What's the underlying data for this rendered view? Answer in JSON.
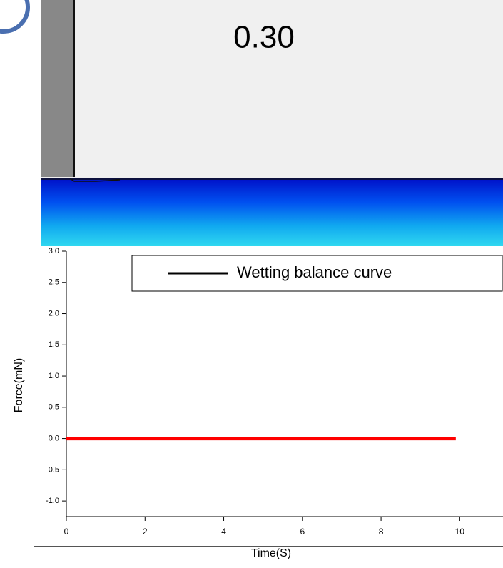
{
  "chart_data": {
    "type": "line",
    "annotation": "0.30",
    "xlabel": "Time(S)",
    "ylabel": "Force(mN)",
    "x": [
      0,
      9.9
    ],
    "series": [
      {
        "name": "Wetting balance curve",
        "color": "#ff0000",
        "values": [
          0,
          0
        ]
      }
    ],
    "legend": "top-right",
    "legend_line_color": "#000000",
    "xlim": [
      0,
      11.1
    ],
    "ylim": [
      -1.25,
      3.0
    ],
    "xticks": [
      0,
      2,
      4,
      6,
      8,
      10
    ],
    "yticks": [
      {
        "value": 3,
        "label": "3.0"
      },
      {
        "value": 2.5,
        "label": "2.5"
      },
      {
        "value": 2,
        "label": "2.0"
      },
      {
        "value": 1.5,
        "label": "1.5"
      },
      {
        "value": 1,
        "label": "1.0"
      },
      {
        "value": 0.5,
        "label": "0.5"
      },
      {
        "value": 0,
        "label": "0.0"
      },
      {
        "value": -0.5,
        "label": "-0.5"
      },
      {
        "value": -1,
        "label": "-1.0"
      }
    ]
  }
}
